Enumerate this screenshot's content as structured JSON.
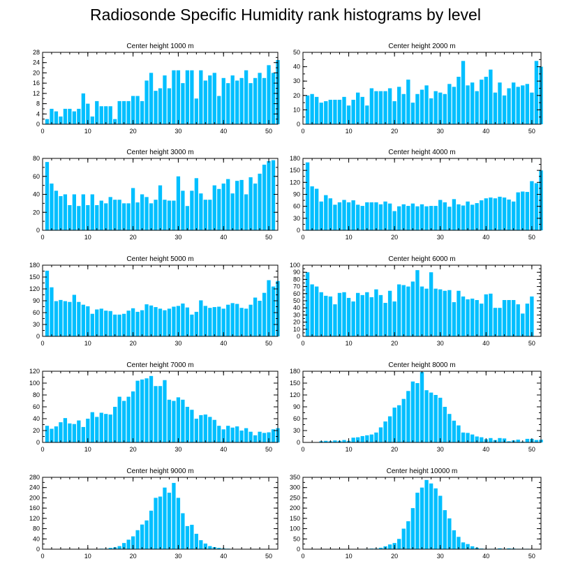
{
  "title": "Radiosonde Specific Humidity rank histograms by level",
  "colors": {
    "bar": "#00bfff",
    "axis": "#000000",
    "background": "#ffffff"
  },
  "chart_data": [
    {
      "type": "bar",
      "title": "Center height 1000 m",
      "xlabel": "",
      "ylabel": "",
      "xlim": [
        0,
        52
      ],
      "ylim": [
        0,
        28
      ],
      "xticks": [
        0,
        10,
        20,
        30,
        40,
        50
      ],
      "yticks": [
        0,
        4,
        8,
        12,
        16,
        20,
        24,
        28
      ],
      "values": [
        2,
        6,
        5,
        3,
        6,
        6,
        5,
        6,
        12,
        8,
        3,
        9,
        7,
        7,
        7,
        2,
        9,
        9,
        9,
        11,
        11,
        9,
        17,
        20,
        13,
        14,
        19,
        14,
        21,
        21,
        16,
        21,
        21,
        10,
        21,
        17,
        19,
        20,
        11,
        18,
        16,
        19,
        17,
        18,
        21,
        16,
        18,
        20,
        18,
        23,
        20,
        25
      ]
    },
    {
      "type": "bar",
      "title": "Center height 2000 m",
      "xlabel": "",
      "ylabel": "",
      "xlim": [
        0,
        52
      ],
      "ylim": [
        0,
        50
      ],
      "xticks": [
        0,
        10,
        20,
        30,
        40,
        50
      ],
      "yticks": [
        0,
        10,
        20,
        30,
        40,
        50
      ],
      "values": [
        20,
        21,
        19,
        15,
        16,
        17,
        17,
        17,
        19,
        13,
        17,
        22,
        19,
        13,
        25,
        23,
        23,
        23,
        25,
        16,
        26,
        21,
        31,
        15,
        21,
        24,
        27,
        18,
        23,
        22,
        21,
        28,
        26,
        33,
        44,
        27,
        29,
        23,
        31,
        33,
        38,
        22,
        29,
        20,
        25,
        29,
        26,
        27,
        28,
        22,
        44,
        40,
        32
      ]
    },
    {
      "type": "bar",
      "title": "Center height 3000 m",
      "xlabel": "",
      "ylabel": "",
      "xlim": [
        0,
        52
      ],
      "ylim": [
        0,
        80
      ],
      "xticks": [
        0,
        10,
        20,
        30,
        40,
        50
      ],
      "yticks": [
        0,
        20,
        40,
        60,
        80
      ],
      "values": [
        76,
        52,
        44,
        38,
        40,
        28,
        40,
        27,
        40,
        28,
        40,
        28,
        33,
        30,
        37,
        34,
        34,
        30,
        30,
        47,
        31,
        40,
        37,
        30,
        34,
        50,
        34,
        33,
        33,
        60,
        44,
        27,
        44,
        58,
        41,
        34,
        34,
        50,
        46,
        52,
        57,
        41,
        55,
        56,
        40,
        59,
        52,
        63,
        73,
        77,
        78
      ]
    },
    {
      "type": "bar",
      "title": "Center height 4000 m",
      "xlabel": "",
      "ylabel": "",
      "xlim": [
        0,
        52
      ],
      "ylim": [
        0,
        180
      ],
      "xticks": [
        0,
        10,
        20,
        30,
        40,
        50
      ],
      "yticks": [
        0,
        30,
        60,
        90,
        120,
        150,
        180
      ],
      "values": [
        170,
        110,
        104,
        72,
        88,
        80,
        64,
        70,
        76,
        70,
        75,
        64,
        61,
        70,
        70,
        70,
        65,
        72,
        67,
        48,
        60,
        65,
        61,
        67,
        60,
        65,
        60,
        61,
        61,
        76,
        70,
        59,
        78,
        65,
        62,
        72,
        64,
        68,
        75,
        80,
        82,
        80,
        84,
        82,
        77,
        72,
        95,
        97,
        96,
        123,
        118,
        150
      ]
    },
    {
      "type": "bar",
      "title": "Center height 5000 m",
      "xlabel": "",
      "ylabel": "",
      "xlim": [
        0,
        52
      ],
      "ylim": [
        0,
        180
      ],
      "xticks": [
        0,
        10,
        20,
        30,
        40,
        50
      ],
      "yticks": [
        0,
        30,
        60,
        90,
        120,
        150,
        180
      ],
      "values": [
        166,
        124,
        89,
        92,
        89,
        87,
        105,
        87,
        80,
        76,
        57,
        68,
        70,
        65,
        64,
        55,
        55,
        57,
        65,
        71,
        62,
        66,
        81,
        78,
        74,
        70,
        66,
        70,
        75,
        77,
        83,
        73,
        55,
        62,
        91,
        77,
        72,
        74,
        75,
        70,
        80,
        84,
        82,
        72,
        70,
        80,
        98,
        90,
        110,
        142,
        126,
        140
      ]
    },
    {
      "type": "bar",
      "title": "Center height 6000 m",
      "xlabel": "",
      "ylabel": "",
      "xlim": [
        0,
        52
      ],
      "ylim": [
        0,
        100
      ],
      "xticks": [
        0,
        10,
        20,
        30,
        40,
        50
      ],
      "yticks": [
        0,
        10,
        20,
        30,
        40,
        50,
        60,
        70,
        80,
        90,
        100
      ],
      "values": [
        90,
        73,
        70,
        62,
        57,
        56,
        45,
        61,
        62,
        54,
        49,
        61,
        58,
        62,
        55,
        66,
        58,
        47,
        64,
        49,
        73,
        72,
        70,
        77,
        93,
        70,
        67,
        90,
        67,
        66,
        64,
        65,
        48,
        64,
        56,
        52,
        53,
        51,
        46,
        59,
        60,
        40,
        40,
        51,
        51,
        51,
        45,
        32,
        46,
        56
      ]
    },
    {
      "type": "bar",
      "title": "Center height 7000 m",
      "xlabel": "",
      "ylabel": "",
      "xlim": [
        0,
        52
      ],
      "ylim": [
        0,
        120
      ],
      "xticks": [
        0,
        10,
        20,
        30,
        40,
        50
      ],
      "yticks": [
        0,
        20,
        40,
        60,
        80,
        100,
        120
      ],
      "values": [
        28,
        23,
        27,
        34,
        41,
        32,
        31,
        37,
        26,
        40,
        51,
        43,
        50,
        48,
        47,
        60,
        77,
        70,
        77,
        86,
        104,
        106,
        108,
        112,
        95,
        95,
        105,
        72,
        70,
        76,
        72,
        60,
        55,
        40,
        46,
        47,
        43,
        38,
        28,
        22,
        28,
        25,
        27,
        20,
        24,
        18,
        12,
        18,
        16,
        17,
        22,
        24
      ]
    },
    {
      "type": "bar",
      "title": "Center height 8000 m",
      "xlabel": "",
      "ylabel": "",
      "xlim": [
        0,
        52
      ],
      "ylim": [
        0,
        180
      ],
      "xticks": [
        0,
        10,
        20,
        30,
        40,
        50
      ],
      "yticks": [
        0,
        30,
        60,
        90,
        120,
        150,
        180
      ],
      "values": [
        0,
        0,
        0,
        3,
        4,
        3,
        5,
        4,
        6,
        4,
        12,
        13,
        16,
        18,
        20,
        25,
        38,
        53,
        66,
        88,
        94,
        110,
        130,
        154,
        150,
        178,
        132,
        126,
        120,
        113,
        90,
        72,
        55,
        43,
        25,
        24,
        20,
        15,
        13,
        8,
        11,
        6,
        11,
        10,
        3,
        5,
        7,
        2,
        9,
        9,
        6,
        7
      ]
    },
    {
      "type": "bar",
      "title": "Center height 9000 m",
      "xlabel": "",
      "ylabel": "",
      "xlim": [
        0,
        52
      ],
      "ylim": [
        0,
        280
      ],
      "xticks": [
        0,
        10,
        20,
        30,
        40,
        50
      ],
      "yticks": [
        0,
        40,
        80,
        120,
        160,
        200,
        240,
        280
      ],
      "values": [
        0,
        0,
        0,
        0,
        0,
        0,
        0,
        0,
        0,
        0,
        0,
        0,
        2,
        2,
        5,
        7,
        12,
        24,
        37,
        50,
        74,
        96,
        112,
        150,
        200,
        205,
        240,
        220,
        258,
        200,
        140,
        90,
        95,
        60,
        35,
        22,
        12,
        8,
        5,
        3,
        2,
        0,
        0,
        0,
        0,
        0,
        0,
        0,
        0,
        0,
        0,
        0
      ]
    },
    {
      "type": "bar",
      "title": "Center height 10000 m",
      "xlabel": "",
      "ylabel": "",
      "xlim": [
        0,
        52
      ],
      "ylim": [
        0,
        350
      ],
      "xticks": [
        0,
        10,
        20,
        30,
        40,
        50
      ],
      "yticks": [
        0,
        50,
        100,
        150,
        200,
        250,
        300,
        350
      ],
      "values": [
        0,
        0,
        0,
        0,
        0,
        0,
        0,
        0,
        0,
        0,
        0,
        0,
        0,
        2,
        3,
        3,
        7,
        14,
        23,
        30,
        50,
        100,
        136,
        200,
        275,
        300,
        337,
        320,
        296,
        260,
        190,
        150,
        92,
        60,
        33,
        25,
        14,
        7,
        3,
        2,
        2,
        2,
        4,
        2,
        4,
        3,
        2,
        2,
        2,
        0,
        0,
        0
      ]
    }
  ]
}
